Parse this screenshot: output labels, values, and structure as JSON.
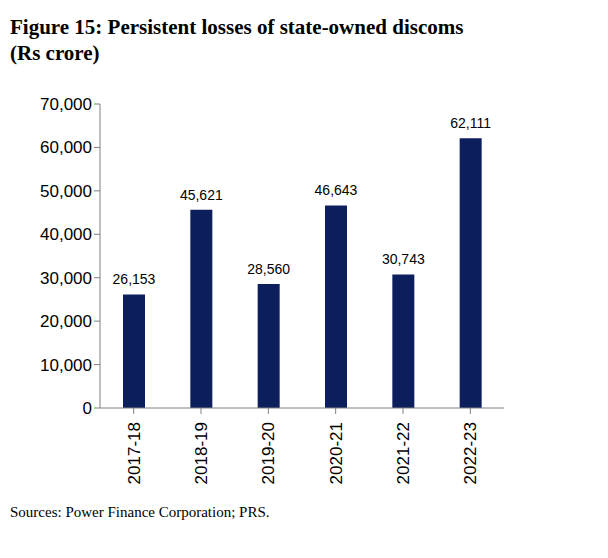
{
  "chart_data": {
    "type": "bar",
    "title": "Figure 15: Persistent losses of state-owned discoms (Rs crore)",
    "categories": [
      "2017-18",
      "2018-19",
      "2019-20",
      "2020-21",
      "2021-22",
      "2022-23"
    ],
    "values": [
      26153,
      45621,
      28560,
      46643,
      30743,
      62111
    ],
    "value_labels": [
      "26,153",
      "45,621",
      "28,560",
      "46,643",
      "30,743",
      "62,111"
    ],
    "data_labels": true,
    "color": "#0d1e5c",
    "ylim": [
      0,
      70000
    ],
    "yticks": [
      0,
      {
        "value": 10000,
        "label": "10,000"
      },
      {
        "value": 20000,
        "label": "20,000"
      },
      {
        "value": 30000,
        "label": "30,000"
      },
      {
        "value": 40000,
        "label": "40,000"
      },
      {
        "value": 50000,
        "label": "50,000"
      },
      {
        "value": 60000,
        "label": "60,000"
      },
      {
        "value": 70000,
        "label": "70,000"
      }
    ],
    "grid": false,
    "annotations": [
      "Sources: Power Finance Corporation; PRS."
    ]
  }
}
